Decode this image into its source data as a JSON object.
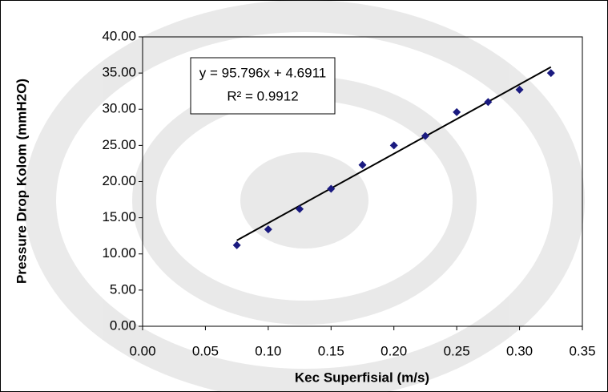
{
  "chart_data": {
    "type": "scatter",
    "x_label": "Kec Superfisial (m/s)",
    "y_label": "Pressure Drop Kolom (mmH2O)",
    "series": [
      {
        "color": "#1a1a80",
        "x": [
          0.075,
          0.1,
          0.125,
          0.15,
          0.175,
          0.2,
          0.225,
          0.25,
          0.275,
          0.3,
          0.325
        ],
        "values": [
          11.2,
          13.4,
          16.2,
          19.0,
          22.3,
          25.0,
          26.3,
          29.6,
          31.0,
          32.7,
          35.0
        ]
      }
    ],
    "trendline": {
      "slope": 95.796,
      "intercept": 4.6911,
      "color": "#000000",
      "equation": "y = 95.796x + 4.6911",
      "r2": "R² = 0.9912"
    },
    "xlim": [
      0,
      0.35
    ],
    "xticks": [
      {
        "value": 0,
        "label": "0.00"
      },
      {
        "value": 0.05,
        "label": "0.05"
      },
      {
        "value": 0.1,
        "label": "0.10"
      },
      {
        "value": 0.15,
        "label": "0.15"
      },
      {
        "value": 0.2,
        "label": "0.20"
      },
      {
        "value": 0.25,
        "label": "0.25"
      },
      {
        "value": 0.3,
        "label": "0.30"
      },
      {
        "value": 0.35,
        "label": "0.35"
      }
    ],
    "ylim": [
      0,
      40
    ],
    "yticks": [
      {
        "value": 0,
        "label": "0.00"
      },
      {
        "value": 5,
        "label": "5.00"
      },
      {
        "value": 10,
        "label": "10.00"
      },
      {
        "value": 15,
        "label": "15.00"
      },
      {
        "value": 20,
        "label": "20.00"
      },
      {
        "value": 25,
        "label": "25.00"
      },
      {
        "value": 30,
        "label": "30.00"
      },
      {
        "value": 35,
        "label": "35.00"
      },
      {
        "value": 40,
        "label": "40.00"
      }
    ],
    "grid": false
  }
}
